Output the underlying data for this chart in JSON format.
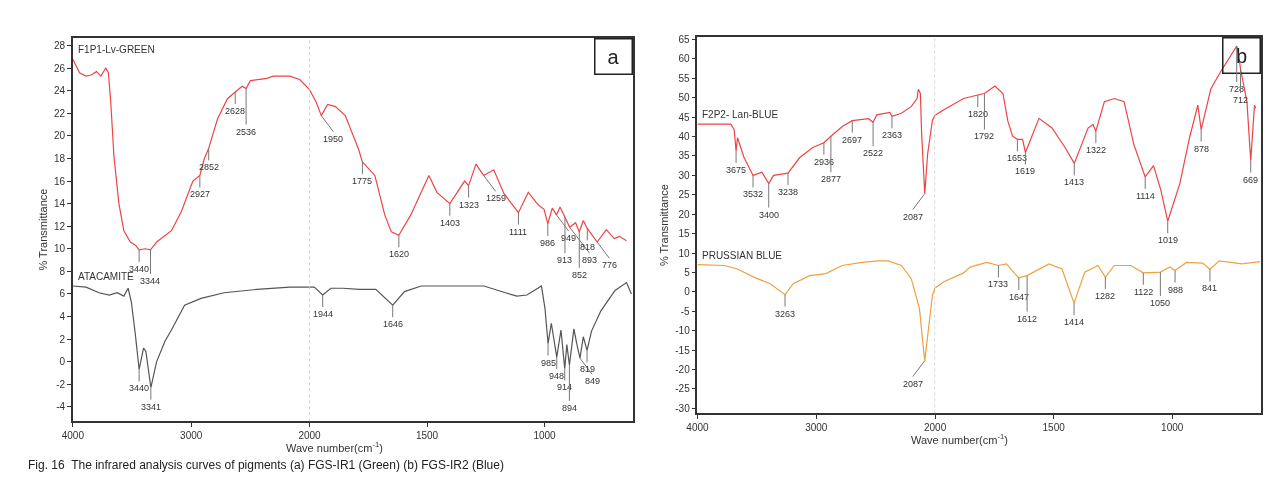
{
  "chart_data": [
    {
      "type": "line",
      "ylabel": "% Transmittance",
      "xlim": [
        4000,
        2000
      ],
      "xticks": [
        4000,
        3000,
        2000
      ],
      "ylim": [
        -5.3,
        28.7
      ],
      "yticks": [
        -4,
        -2,
        0,
        2,
        4,
        6,
        8,
        10,
        12,
        14,
        16,
        18,
        20,
        22,
        24,
        26,
        28
      ],
      "tick_labels": "xy",
      "ref_lines": [
        {
          "axis": "x",
          "value": 2000,
          "color": "#aaaaaa",
          "line_style": "dotted"
        }
      ],
      "series": [
        {
          "name": "F1P1-Lv-GREEN",
          "color": "#ee4444",
          "x": [
            4000,
            3944,
            3889,
            3847,
            3800,
            3764,
            3722,
            3700,
            3681,
            3653,
            3611,
            3569,
            3514,
            3470,
            3440,
            3389,
            3344,
            3292,
            3167,
            3083,
            2986,
            2927,
            2889,
            2852,
            2778,
            2694,
            2628,
            2569,
            2536,
            2500,
            2361,
            2306,
            2167,
            2083,
            2000
          ],
          "values": [
            26.8,
            25.6,
            25.3,
            25.4,
            25.7,
            25.3,
            26.0,
            25.6,
            23.2,
            18.2,
            14.0,
            11.6,
            10.6,
            10.3,
            9.9,
            10.0,
            9.9,
            10.6,
            11.6,
            13.3,
            16.0,
            16.5,
            18.0,
            18.9,
            21.5,
            23.3,
            23.9,
            24.4,
            24.2,
            24.9,
            25.1,
            25.3,
            25.3,
            25.0,
            24.1
          ]
        },
        {
          "name": "ATACAMITE",
          "color": "#555555",
          "x": [
            4000,
            3889,
            3778,
            3694,
            3625,
            3569,
            3533,
            3506,
            3472,
            3440,
            3403,
            3383,
            3341,
            3292,
            3222,
            3167,
            3056,
            2917,
            2722,
            2444,
            2167,
            2000
          ],
          "values": [
            6.7,
            6.6,
            6.1,
            5.9,
            6.1,
            5.8,
            6.5,
            5.3,
            2.4,
            -0.7,
            1.2,
            0.9,
            -2.3,
            0.0,
            1.8,
            2.8,
            5.0,
            5.6,
            6.1,
            6.4,
            6.6,
            6.6
          ]
        }
      ],
      "annotations": [
        {
          "text": "3440",
          "x": 3440,
          "y": 9.9
        },
        {
          "text": "3344",
          "x": 3344,
          "y": 9.9
        },
        {
          "text": "2927",
          "x": 2927,
          "y": 16.5
        },
        {
          "text": "2852",
          "x": 2852,
          "y": 18.9
        },
        {
          "text": "2628",
          "x": 2628,
          "y": 23.9
        },
        {
          "text": "2536",
          "x": 2536,
          "y": 24.2
        },
        {
          "text": "3440",
          "x": 3440,
          "y": -0.7
        },
        {
          "text": "3341",
          "x": 3341,
          "y": -2.3
        },
        "Fig. 16  The infrared analysis curves of pigments (a) FGS-IR1 (Green) (b) FGS-IR2 (Blue)"
      ]
    },
    {
      "type": "line",
      "title": "a",
      "xlabel": "Wave number(cm$^{-1}$)",
      "xlim": [
        2000,
        625
      ],
      "xticks": [
        1500,
        1000
      ],
      "ylim": [
        -5.3,
        28.7
      ],
      "tick_labels": "x",
      "series": [
        {
          "color": "#ee4444",
          "x": [
            2000,
            1972,
            1950,
            1923,
            1890,
            1848,
            1791,
            1775,
            1722,
            1680,
            1652,
            1620,
            1569,
            1492,
            1458,
            1403,
            1340,
            1323,
            1292,
            1259,
            1216,
            1173,
            1111,
            1069,
            1027,
            1002,
            986,
            967,
            949,
            934,
            913,
            893,
            868,
            852,
            835,
            818,
            776,
            737,
            703,
            681,
            651
          ],
          "values": [
            24.1,
            23.0,
            21.8,
            22.8,
            22.6,
            21.8,
            18.8,
            17.7,
            16.5,
            13.0,
            11.5,
            11.2,
            13.0,
            16.5,
            15.0,
            14.0,
            16.0,
            15.6,
            17.5,
            16.5,
            17.0,
            14.9,
            13.2,
            15.0,
            13.9,
            13.5,
            12.2,
            13.6,
            13.0,
            13.7,
            12.8,
            11.9,
            12.3,
            11.5,
            12.5,
            11.8,
            10.6,
            11.7,
            10.9,
            11.1,
            10.7
          ]
        },
        {
          "color": "#555555",
          "x": [
            2000,
            1980,
            1944,
            1909,
            1859,
            1788,
            1718,
            1646,
            1596,
            1525,
            1258,
            1166,
            1118,
            1075,
            1013,
            998,
            985,
            971,
            948,
            930,
            914,
            905,
            894,
            875,
            862,
            849,
            835,
            819,
            800,
            760,
            700,
            651,
            630
          ],
          "values": [
            6.6,
            6.6,
            5.9,
            6.5,
            6.5,
            6.4,
            6.4,
            5.0,
            6.2,
            6.7,
            6.7,
            6.1,
            5.8,
            5.9,
            6.7,
            4.7,
            1.6,
            3.4,
            0.4,
            2.8,
            -0.6,
            1.5,
            -0.3,
            2.9,
            1.5,
            0.3,
            2.2,
            1.0,
            2.7,
            4.5,
            6.3,
            7.0,
            6.0
          ]
        }
      ],
      "annotations": [
        {
          "text": "1950",
          "x": 1950,
          "y": 21.8
        },
        {
          "text": "1775",
          "x": 1775,
          "y": 17.7
        },
        {
          "text": "1620",
          "x": 1620,
          "y": 11.2
        },
        {
          "text": "1403",
          "x": 1403,
          "y": 14.0
        },
        {
          "text": "1323",
          "x": 1323,
          "y": 15.6
        },
        {
          "text": "1259",
          "x": 1259,
          "y": 16.5
        },
        {
          "text": "1111",
          "x": 1111,
          "y": 13.2
        },
        {
          "text": "986",
          "x": 986,
          "y": 12.2
        },
        {
          "text": "949",
          "x": 949,
          "y": 13.0
        },
        {
          "text": "913",
          "x": 913,
          "y": 12.8
        },
        {
          "text": "893",
          "x": 893,
          "y": 11.9
        },
        {
          "text": "852",
          "x": 852,
          "y": 11.5
        },
        {
          "text": "818",
          "x": 818,
          "y": 11.8
        },
        {
          "text": "776",
          "x": 776,
          "y": 10.6
        },
        {
          "text": "1944",
          "x": 1944,
          "y": 5.9
        },
        {
          "text": "1646",
          "x": 1646,
          "y": 5.0
        },
        {
          "text": "985",
          "x": 985,
          "y": 1.6
        },
        {
          "text": "948",
          "x": 948,
          "y": 0.4
        },
        {
          "text": "914",
          "x": 914,
          "y": -0.6
        },
        {
          "text": "894",
          "x": 894,
          "y": -0.3
        },
        {
          "text": "849",
          "x": 849,
          "y": 0.3
        },
        {
          "text": "819",
          "x": 819,
          "y": 1.0
        }
      ]
    },
    {
      "type": "line",
      "ylabel": "% Transmittance",
      "xlim": [
        4000,
        2000
      ],
      "xticks": [
        4000,
        3000,
        2000
      ],
      "ylim": [
        -31.3,
        65.7
      ],
      "yticks": [
        -30,
        -25,
        -20,
        -15,
        -10,
        -5,
        0,
        5,
        10,
        15,
        20,
        25,
        30,
        35,
        40,
        45,
        50,
        55,
        60,
        65
      ],
      "tick_labels": "xy",
      "ref_lines": [
        {
          "axis": "x",
          "value": 2000,
          "color": "#aaaaaa",
          "line_style": "dotted"
        }
      ],
      "series": [
        {
          "name": "F2P2- Lan-BLUE",
          "color": "#ee4444",
          "x": [
            4000,
            3719,
            3691,
            3675,
            3663,
            3608,
            3532,
            3457,
            3400,
            3360,
            3238,
            3139,
            3029,
            2936,
            2877,
            2781,
            2697,
            2560,
            2522,
            2491,
            2381,
            2363,
            2284,
            2201,
            2152,
            2141,
            2124,
            2113,
            2087,
            2063,
            2022,
            2000
          ],
          "values": [
            43.2,
            43.2,
            41.8,
            36.3,
            39.7,
            34.6,
            30.0,
            30.8,
            27.9,
            30.0,
            30.6,
            34.6,
            37.2,
            38.4,
            40.1,
            42.6,
            44.1,
            44.6,
            43.7,
            45.6,
            46.2,
            45.2,
            46.0,
            47.7,
            49.8,
            52.2,
            51.1,
            40.5,
            25.3,
            35.5,
            44.3,
            45.5
          ]
        },
        {
          "name": "PRUSSIAN BLUE",
          "color": "#f0a040",
          "x": [
            4000,
            3774,
            3663,
            3526,
            3388,
            3263,
            3194,
            3057,
            2919,
            2781,
            2615,
            2477,
            2394,
            2284,
            2201,
            2132,
            2105,
            2087,
            2058,
            2022,
            2000
          ],
          "values": [
            7.0,
            6.8,
            5.9,
            3.8,
            2.1,
            -0.7,
            2.1,
            4.2,
            4.7,
            6.8,
            7.6,
            8.0,
            8.0,
            6.8,
            3.4,
            -4.2,
            -12.6,
            -17.7,
            -10.1,
            -0.8,
            1.0
          ]
        }
      ],
      "annotations": [
        {
          "text": "3675",
          "x": 3675,
          "y": 36.3
        },
        {
          "text": "3532",
          "x": 3532,
          "y": 30.0
        },
        {
          "text": "3400",
          "x": 3400,
          "y": 27.9
        },
        {
          "text": "3238",
          "x": 3238,
          "y": 30.6
        },
        {
          "text": "2936",
          "x": 2936,
          "y": 38.4
        },
        {
          "text": "2877",
          "x": 2877,
          "y": 40.1
        },
        {
          "text": "2697",
          "x": 2697,
          "y": 44.1
        },
        {
          "text": "2522",
          "x": 2522,
          "y": 43.7
        },
        {
          "text": "2363",
          "x": 2363,
          "y": 45.2
        },
        {
          "text": "2087",
          "x": 2087,
          "y": 25.3
        },
        {
          "text": "3263",
          "x": 3263,
          "y": -0.7
        },
        {
          "text": "2087",
          "x": 2087,
          "y": -17.7
        }
      ]
    },
    {
      "type": "line",
      "title": "b",
      "xlabel": "Wave number(cm$^{-1}$)",
      "xlim": [
        2000,
        625
      ],
      "xticks": [
        1500,
        1000
      ],
      "ylim": [
        -31.3,
        65.7
      ],
      "tick_labels": "x",
      "series": [
        {
          "color": "#ee4444",
          "x": [
            2000,
            1963,
            1880,
            1820,
            1792,
            1748,
            1714,
            1693,
            1673,
            1653,
            1631,
            1619,
            1562,
            1507,
            1452,
            1413,
            1355,
            1334,
            1322,
            1286,
            1244,
            1203,
            1162,
            1114,
            1079,
            1048,
            1019,
            968,
            927,
            892,
            878,
            837,
            789,
            728,
            719,
            712,
            685,
            669,
            653,
            648
          ],
          "values": [
            45.5,
            46.9,
            49.8,
            50.7,
            51.1,
            53.0,
            51.1,
            43.9,
            40.1,
            39.3,
            39.3,
            35.9,
            44.7,
            42.2,
            37.2,
            33.1,
            42.2,
            43.1,
            41.4,
            49.0,
            49.8,
            49.0,
            38.0,
            29.6,
            32.5,
            26.2,
            18.2,
            27.9,
            39.7,
            48.1,
            41.8,
            52.3,
            57.4,
            63.3,
            60.8,
            57.4,
            49.0,
            33.8,
            48.1,
            47.3
          ]
        },
        {
          "color": "#f0a040",
          "x": [
            2000,
            1963,
            1880,
            1852,
            1783,
            1733,
            1700,
            1647,
            1612,
            1520,
            1465,
            1414,
            1369,
            1313,
            1282,
            1244,
            1175,
            1122,
            1050,
            1010,
            988,
            940,
            871,
            841,
            802,
            706,
            630
          ],
          "values": [
            1.0,
            2.6,
            4.9,
            6.4,
            7.6,
            6.8,
            7.2,
            3.6,
            4.2,
            7.2,
            5.9,
            -2.9,
            5.1,
            6.8,
            3.8,
            6.8,
            6.8,
            4.9,
            5.1,
            6.4,
            5.5,
            7.6,
            7.4,
            5.8,
            8.0,
            7.2,
            7.8
          ]
        }
      ],
      "annotations": [
        {
          "text": "1820",
          "x": 1820,
          "y": 50.7
        },
        {
          "text": "1792",
          "x": 1792,
          "y": 51.1
        },
        {
          "text": "1653",
          "x": 1653,
          "y": 39.3
        },
        {
          "text": "1619",
          "x": 1619,
          "y": 35.9
        },
        {
          "text": "1413",
          "x": 1413,
          "y": 33.1
        },
        {
          "text": "1322",
          "x": 1322,
          "y": 41.4
        },
        {
          "text": "1114",
          "x": 1114,
          "y": 29.6
        },
        {
          "text": "1019",
          "x": 1019,
          "y": 18.2
        },
        {
          "text": "878",
          "x": 878,
          "y": 41.8
        },
        {
          "text": "728",
          "x": 728,
          "y": 63.3
        },
        {
          "text": "712",
          "x": 712,
          "y": 57.4
        },
        {
          "text": "669",
          "x": 669,
          "y": 33.8
        },
        {
          "text": "1733",
          "x": 1733,
          "y": 6.8
        },
        {
          "text": "1647",
          "x": 1647,
          "y": 3.6
        },
        {
          "text": "1612",
          "x": 1612,
          "y": 4.2
        },
        {
          "text": "1414",
          "x": 1414,
          "y": -2.9
        },
        {
          "text": "1282",
          "x": 1282,
          "y": 3.8
        },
        {
          "text": "1122",
          "x": 1122,
          "y": 4.9
        },
        {
          "text": "1050",
          "x": 1050,
          "y": 5.1
        },
        {
          "text": "988",
          "x": 988,
          "y": 5.5
        },
        {
          "text": "841",
          "x": 841,
          "y": 5.8
        }
      ]
    }
  ]
}
